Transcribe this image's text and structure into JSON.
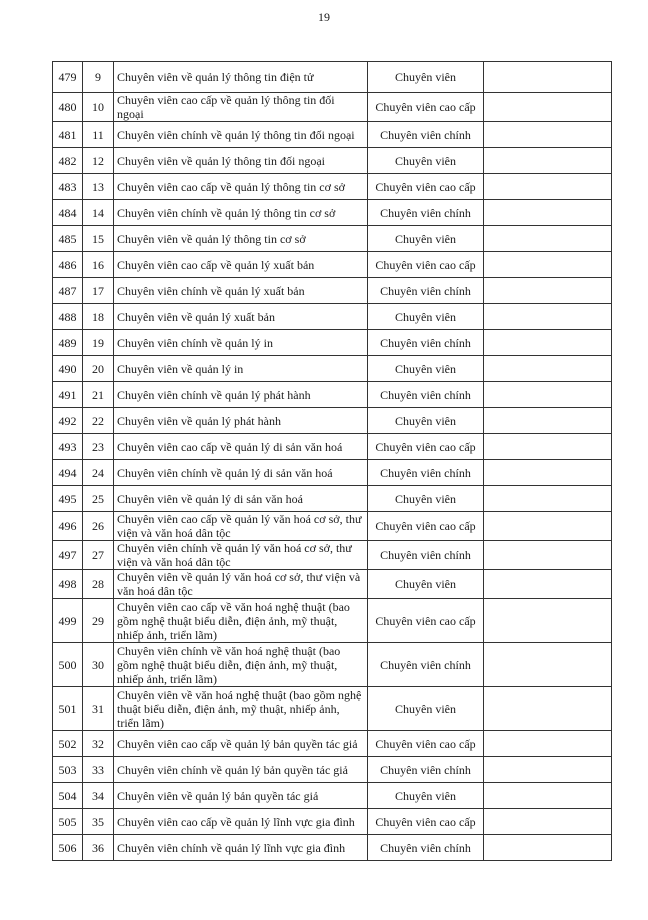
{
  "page_number": "19",
  "rows": [
    {
      "stt": "479",
      "sub": "9",
      "title": "Chuyên viên về quản lý thông tin điện tử",
      "rank": "Chuyên viên",
      "lines": 1
    },
    {
      "stt": "480",
      "sub": "10",
      "title": "Chuyên viên cao cấp về quản lý thông tin đối ngoại",
      "rank": "Chuyên viên cao cấp",
      "lines": 1
    },
    {
      "stt": "481",
      "sub": "11",
      "title": "Chuyên viên chính về quản lý thông tin đối ngoại",
      "rank": "Chuyên viên chính",
      "lines": 1
    },
    {
      "stt": "482",
      "sub": "12",
      "title": "Chuyên viên về quản lý thông tin đối ngoại",
      "rank": "Chuyên viên",
      "lines": 1
    },
    {
      "stt": "483",
      "sub": "13",
      "title": "Chuyên viên cao cấp về quản lý thông tin cơ sở",
      "rank": "Chuyên viên cao cấp",
      "lines": 1
    },
    {
      "stt": "484",
      "sub": "14",
      "title": "Chuyên viên chính về quản lý thông tin cơ sở",
      "rank": "Chuyên viên chính",
      "lines": 1
    },
    {
      "stt": "485",
      "sub": "15",
      "title": "Chuyên viên về quản lý thông tin cơ sở",
      "rank": "Chuyên viên",
      "lines": 1
    },
    {
      "stt": "486",
      "sub": "16",
      "title": "Chuyên viên cao cấp về quản lý xuất bản",
      "rank": "Chuyên viên cao cấp",
      "lines": 1
    },
    {
      "stt": "487",
      "sub": "17",
      "title": "Chuyên viên chính về quản lý xuất bản",
      "rank": "Chuyên viên chính",
      "lines": 1
    },
    {
      "stt": "488",
      "sub": "18",
      "title": "Chuyên viên về quản lý xuất bản",
      "rank": "Chuyên viên",
      "lines": 1
    },
    {
      "stt": "489",
      "sub": "19",
      "title": "Chuyên viên chính về quản lý in",
      "rank": "Chuyên viên chính",
      "lines": 1
    },
    {
      "stt": "490",
      "sub": "20",
      "title": "Chuyên viên về quản lý in",
      "rank": "Chuyên viên",
      "lines": 1
    },
    {
      "stt": "491",
      "sub": "21",
      "title": "Chuyên viên chính về quản lý phát hành",
      "rank": "Chuyên viên chính",
      "lines": 1
    },
    {
      "stt": "492",
      "sub": "22",
      "title": "Chuyên viên về quản lý phát hành",
      "rank": "Chuyên viên",
      "lines": 1
    },
    {
      "stt": "493",
      "sub": "23",
      "title": "Chuyên viên cao cấp về quản lý di sản văn hoá",
      "rank": "Chuyên viên cao cấp",
      "lines": 1
    },
    {
      "stt": "494",
      "sub": "24",
      "title": "Chuyên viên chính về quản lý di sản văn hoá",
      "rank": "Chuyên viên chính",
      "lines": 1
    },
    {
      "stt": "495",
      "sub": "25",
      "title": "Chuyên viên về quản lý di sản văn hoá",
      "rank": "Chuyên viên",
      "lines": 1
    },
    {
      "stt": "496",
      "sub": "26",
      "title": "Chuyên viên cao cấp về quản lý văn hoá cơ sở, thư viện và văn hoá dân tộc",
      "rank": "Chuyên viên cao cấp",
      "lines": 2
    },
    {
      "stt": "497",
      "sub": "27",
      "title": "Chuyên viên chính về quản lý văn hoá cơ sở, thư viện và văn hoá dân tộc",
      "rank": "Chuyên viên chính",
      "lines": 2
    },
    {
      "stt": "498",
      "sub": "28",
      "title": "Chuyên viên về quản lý văn hoá cơ sở, thư viện và văn hoá dân tộc",
      "rank": "Chuyên viên",
      "lines": 2
    },
    {
      "stt": "499",
      "sub": "29",
      "title": "Chuyên viên cao cấp về văn hoá nghệ thuật (bao gồm nghệ thuật biểu diễn, điện ảnh, mỹ thuật, nhiếp ảnh, triển lãm)",
      "rank": "Chuyên viên cao cấp",
      "lines": 3
    },
    {
      "stt": "500",
      "sub": "30",
      "title": "Chuyên viên chính về văn hoá nghệ thuật (bao gồm nghệ thuật biểu diễn, điện ảnh, mỹ thuật, nhiếp ảnh, triển lãm)",
      "rank": "Chuyên viên chính",
      "lines": 3
    },
    {
      "stt": "501",
      "sub": "31",
      "title": "Chuyên viên về văn hoá nghệ thuật (bao gồm nghệ thuật biểu diễn, điện ảnh, mỹ thuật, nhiếp ảnh, triển lãm)",
      "rank": "Chuyên viên",
      "lines": 3
    },
    {
      "stt": "502",
      "sub": "32",
      "title": "Chuyên viên cao cấp về quản lý bản quyền tác giả",
      "rank": "Chuyên viên cao cấp",
      "lines": 1
    },
    {
      "stt": "503",
      "sub": "33",
      "title": "Chuyên viên chính về quản lý bản quyền tác giả",
      "rank": "Chuyên viên chính",
      "lines": 1
    },
    {
      "stt": "504",
      "sub": "34",
      "title": "Chuyên viên về quản lý bản quyền tác giả",
      "rank": "Chuyên viên",
      "lines": 1
    },
    {
      "stt": "505",
      "sub": "35",
      "title": "Chuyên viên cao cấp về quản lý lĩnh vực gia đình",
      "rank": "Chuyên viên cao cấp",
      "lines": 1
    },
    {
      "stt": "506",
      "sub": "36",
      "title": "Chuyên viên chính về quản lý lĩnh vực gia đình",
      "rank": "Chuyên viên chính",
      "lines": 1
    }
  ]
}
